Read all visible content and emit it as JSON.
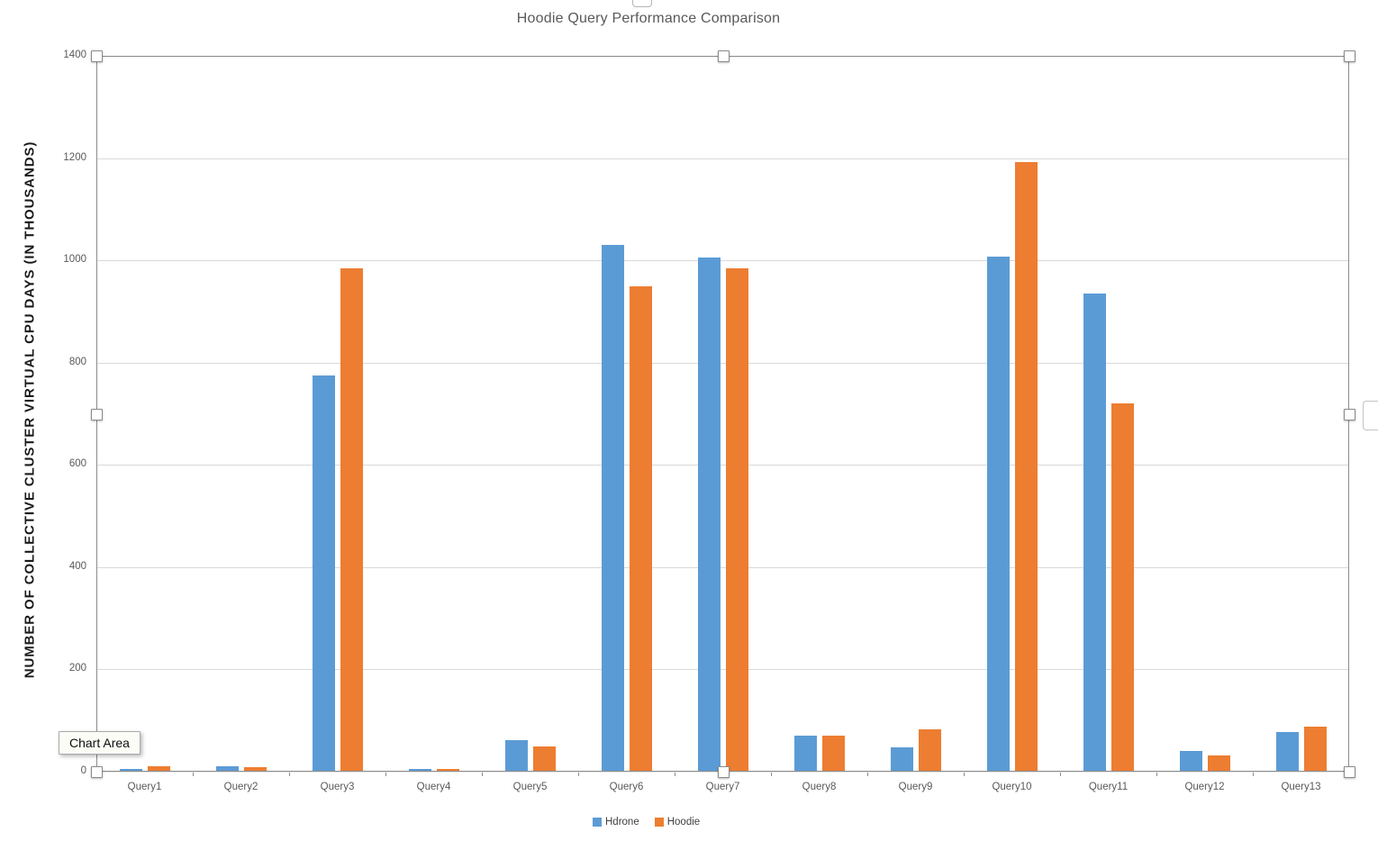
{
  "chart_data": {
    "type": "bar",
    "title": "Hoodie Query Performance Comparison",
    "xlabel": "",
    "ylabel": "NUMBER OF COLLECTIVE CLUSTER VIRTUAL CPU DAYS (IN THOUSANDS)",
    "categories": [
      "Query1",
      "Query2",
      "Query3",
      "Query4",
      "Query5",
      "Query6",
      "Query7",
      "Query8",
      "Query9",
      "Query10",
      "Query11",
      "Query12",
      "Query13"
    ],
    "series": [
      {
        "name": "Hdrone",
        "color": "#5B9BD5",
        "values": [
          5,
          10,
          775,
          5,
          62,
          1030,
          1005,
          70,
          47,
          1008,
          935,
          40,
          78
        ]
      },
      {
        "name": "Hoodie",
        "color": "#ED7D31",
        "values": [
          10,
          9,
          985,
          5,
          50,
          950,
          985,
          71,
          83,
          1192,
          720,
          32,
          88
        ]
      }
    ],
    "ylim": [
      0,
      1400
    ],
    "yticks": [
      0,
      200,
      400,
      600,
      800,
      1000,
      1200,
      1400
    ],
    "grid": true,
    "legend_position": "bottom"
  },
  "selection": {
    "tooltip": "Chart Area"
  },
  "colors": {
    "series_blue": "#5B9BD5",
    "series_orange": "#ED7D31",
    "gridline": "#D9D9D9",
    "axis_text": "#595959",
    "title_text": "#595959",
    "frame": "#8C8C8C"
  }
}
